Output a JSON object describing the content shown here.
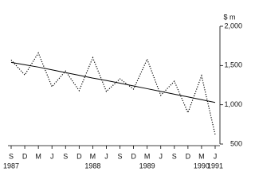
{
  "chart_data": {
    "type": "line",
    "y_axis_label": "$ m",
    "categories": [
      "S",
      "D",
      "M",
      "J",
      "S",
      "D",
      "M",
      "J",
      "S",
      "D",
      "M",
      "J",
      "S",
      "D",
      "M",
      "J"
    ],
    "category_years": [
      "1987",
      null,
      null,
      null,
      null,
      null,
      "1988",
      null,
      null,
      null,
      "1989",
      null,
      null,
      null,
      "1990",
      "1991"
    ],
    "series": [
      {
        "color": "#000000",
        "dash": "dotted",
        "values": [
          1570,
          1380,
          1660,
          1230,
          1430,
          1180,
          1600,
          1170,
          1330,
          1200,
          1580,
          1120,
          1300,
          900,
          1370,
          620
        ]
      },
      {
        "color": "#000000",
        "dash": "solid",
        "values": [
          1540,
          1510,
          1480,
          1445,
          1410,
          1375,
          1340,
          1310,
          1275,
          1240,
          1205,
          1170,
          1135,
          1100,
          1065,
          1030
        ]
      }
    ],
    "ylim": [
      500,
      2000
    ],
    "yticks": [
      500,
      {
        "value": 1000,
        "label": "1,000"
      },
      {
        "value": 1500,
        "label": "1,500"
      },
      {
        "value": 2000,
        "label": "2,000"
      }
    ],
    "y_axis_side": "right"
  }
}
